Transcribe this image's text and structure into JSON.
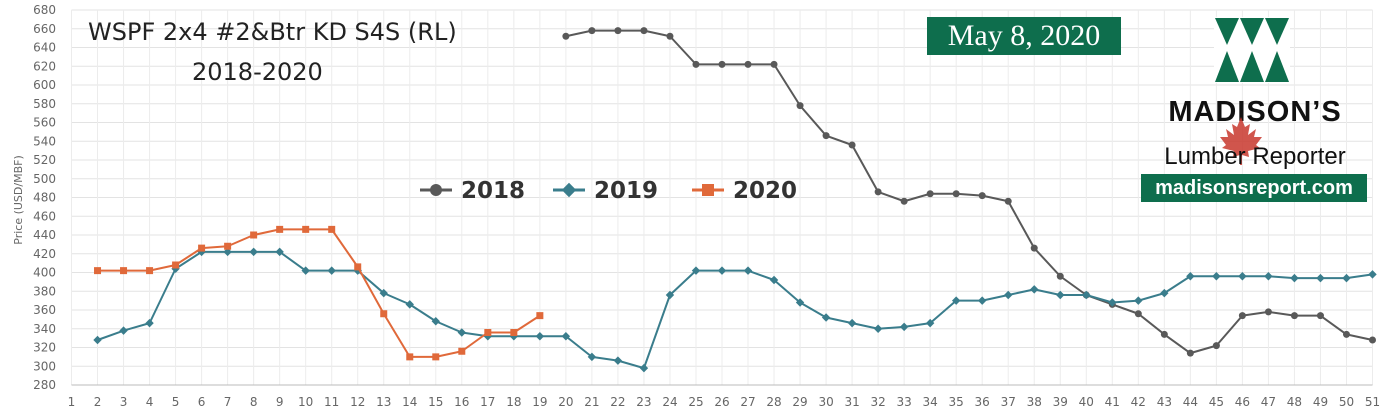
{
  "chart_data": {
    "type": "line",
    "title_line1": "WSPF 2x4 #2&Btr KD S4S (RL)",
    "title_line2": "2018-2020",
    "ylabel": "Price (USD/MBF)",
    "xlabel": "",
    "ylim": [
      280,
      680
    ],
    "yticks": [
      280,
      300,
      320,
      340,
      360,
      380,
      400,
      420,
      440,
      460,
      480,
      500,
      520,
      540,
      560,
      580,
      600,
      620,
      640,
      660,
      680
    ],
    "xlim": [
      1,
      51
    ],
    "xticks": [
      1,
      2,
      3,
      4,
      5,
      6,
      7,
      8,
      9,
      10,
      11,
      12,
      13,
      14,
      15,
      16,
      17,
      18,
      19,
      20,
      21,
      22,
      23,
      24,
      25,
      26,
      27,
      28,
      29,
      30,
      31,
      32,
      33,
      34,
      35,
      36,
      37,
      38,
      39,
      40,
      41,
      42,
      43,
      44,
      45,
      46,
      47,
      48,
      49,
      50,
      51
    ],
    "grid": true,
    "legend_position": "center",
    "series": [
      {
        "name": "2018",
        "color": "#595959",
        "marker": "circle",
        "points": [
          [
            20,
            652
          ],
          [
            21,
            658
          ],
          [
            22,
            658
          ],
          [
            23,
            658
          ],
          [
            24,
            652
          ],
          [
            25,
            622
          ],
          [
            26,
            622
          ],
          [
            27,
            622
          ],
          [
            28,
            622
          ],
          [
            29,
            578
          ],
          [
            30,
            546
          ],
          [
            31,
            536
          ],
          [
            32,
            486
          ],
          [
            33,
            476
          ],
          [
            34,
            484
          ],
          [
            35,
            484
          ],
          [
            36,
            482
          ],
          [
            37,
            476
          ],
          [
            38,
            426
          ],
          [
            39,
            396
          ],
          [
            40,
            376
          ],
          [
            41,
            366
          ],
          [
            42,
            356
          ],
          [
            43,
            334
          ],
          [
            44,
            314
          ],
          [
            45,
            322
          ],
          [
            46,
            354
          ],
          [
            47,
            358
          ],
          [
            48,
            354
          ],
          [
            49,
            354
          ],
          [
            50,
            334
          ],
          [
            51,
            328
          ]
        ]
      },
      {
        "name": "2019",
        "color": "#3a7d8c",
        "marker": "diamond",
        "points": [
          [
            2,
            328
          ],
          [
            3,
            338
          ],
          [
            4,
            346
          ],
          [
            5,
            404
          ],
          [
            6,
            422
          ],
          [
            7,
            422
          ],
          [
            8,
            422
          ],
          [
            9,
            422
          ],
          [
            10,
            402
          ],
          [
            11,
            402
          ],
          [
            12,
            402
          ],
          [
            13,
            378
          ],
          [
            14,
            366
          ],
          [
            15,
            348
          ],
          [
            16,
            336
          ],
          [
            17,
            332
          ],
          [
            18,
            332
          ],
          [
            19,
            332
          ],
          [
            20,
            332
          ],
          [
            21,
            310
          ],
          [
            22,
            306
          ],
          [
            23,
            298
          ],
          [
            24,
            376
          ],
          [
            25,
            402
          ],
          [
            26,
            402
          ],
          [
            27,
            402
          ],
          [
            28,
            392
          ],
          [
            29,
            368
          ],
          [
            30,
            352
          ],
          [
            31,
            346
          ],
          [
            32,
            340
          ],
          [
            33,
            342
          ],
          [
            34,
            346
          ],
          [
            35,
            370
          ],
          [
            36,
            370
          ],
          [
            37,
            376
          ],
          [
            38,
            382
          ],
          [
            39,
            376
          ],
          [
            40,
            376
          ],
          [
            41,
            368
          ],
          [
            42,
            370
          ],
          [
            43,
            378
          ],
          [
            44,
            396
          ],
          [
            45,
            396
          ],
          [
            46,
            396
          ],
          [
            47,
            396
          ],
          [
            48,
            394
          ],
          [
            49,
            394
          ],
          [
            50,
            394
          ],
          [
            51,
            398
          ]
        ]
      },
      {
        "name": "2020",
        "color": "#e0693a",
        "marker": "square",
        "points": [
          [
            2,
            402
          ],
          [
            3,
            402
          ],
          [
            4,
            402
          ],
          [
            5,
            408
          ],
          [
            6,
            426
          ],
          [
            7,
            428
          ],
          [
            8,
            440
          ],
          [
            9,
            446
          ],
          [
            10,
            446
          ],
          [
            11,
            446
          ],
          [
            12,
            406
          ],
          [
            13,
            356
          ],
          [
            14,
            310
          ],
          [
            15,
            310
          ],
          [
            16,
            316
          ],
          [
            17,
            336
          ],
          [
            18,
            336
          ],
          [
            19,
            354
          ]
        ]
      }
    ]
  },
  "header": {
    "date": "May 8, 2020"
  },
  "brand": {
    "name": "MADISON’S",
    "sub": "Lumber Reporter",
    "site": "madisonsreport.com",
    "green": "#0e6e4d"
  }
}
